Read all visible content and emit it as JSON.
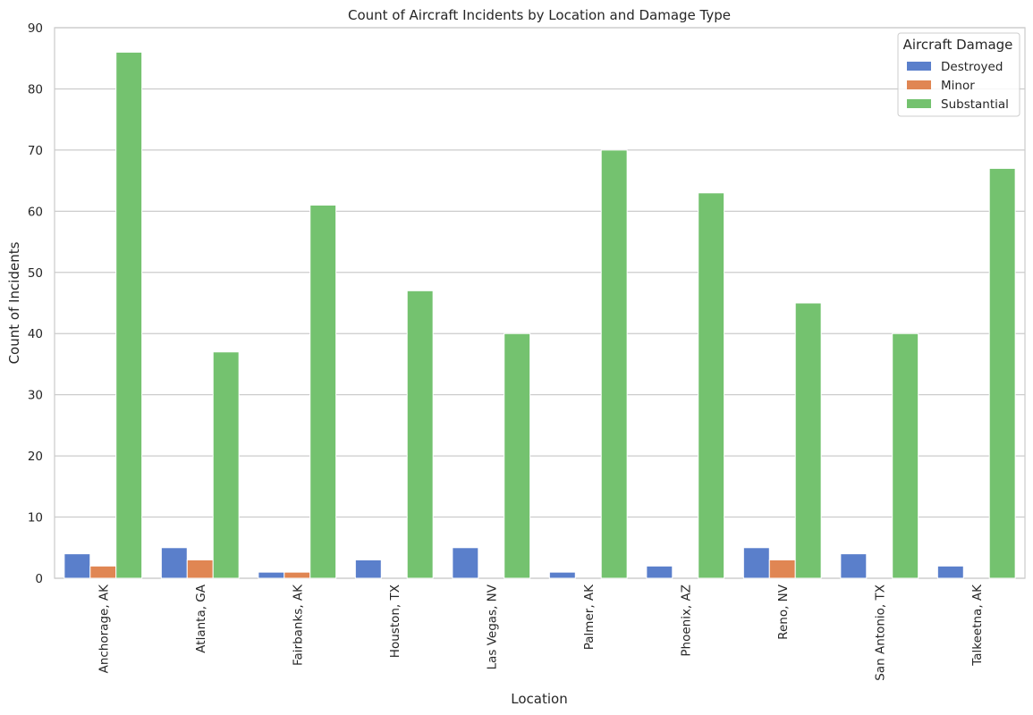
{
  "chart_data": {
    "type": "bar",
    "title": "Count of Aircraft Incidents by Location and Damage Type",
    "xlabel": "Location",
    "ylabel": "Count of Incidents",
    "ylim": [
      0,
      90
    ],
    "yticks": [
      0,
      10,
      20,
      30,
      40,
      50,
      60,
      70,
      80,
      90
    ],
    "grid": true,
    "legend": {
      "title": "Aircraft Damage",
      "placement": "top-right"
    },
    "categories": [
      "Anchorage, AK",
      "Atlanta, GA",
      "Fairbanks, AK",
      "Houston, TX",
      "Las Vegas, NV",
      "Palmer, AK",
      "Phoenix, AZ",
      "Reno, NV",
      "San Antonio, TX",
      "Talkeetna, AK"
    ],
    "series": [
      {
        "name": "Destroyed",
        "color": "#5a7fcb",
        "values": [
          4,
          5,
          1,
          3,
          5,
          1,
          2,
          5,
          4,
          2
        ]
      },
      {
        "name": "Minor",
        "color": "#e08653",
        "values": [
          2,
          3,
          1,
          0,
          0,
          0,
          0,
          3,
          0,
          0
        ]
      },
      {
        "name": "Substantial",
        "color": "#74c26f",
        "values": [
          86,
          37,
          61,
          47,
          40,
          70,
          63,
          45,
          40,
          67
        ]
      }
    ]
  }
}
